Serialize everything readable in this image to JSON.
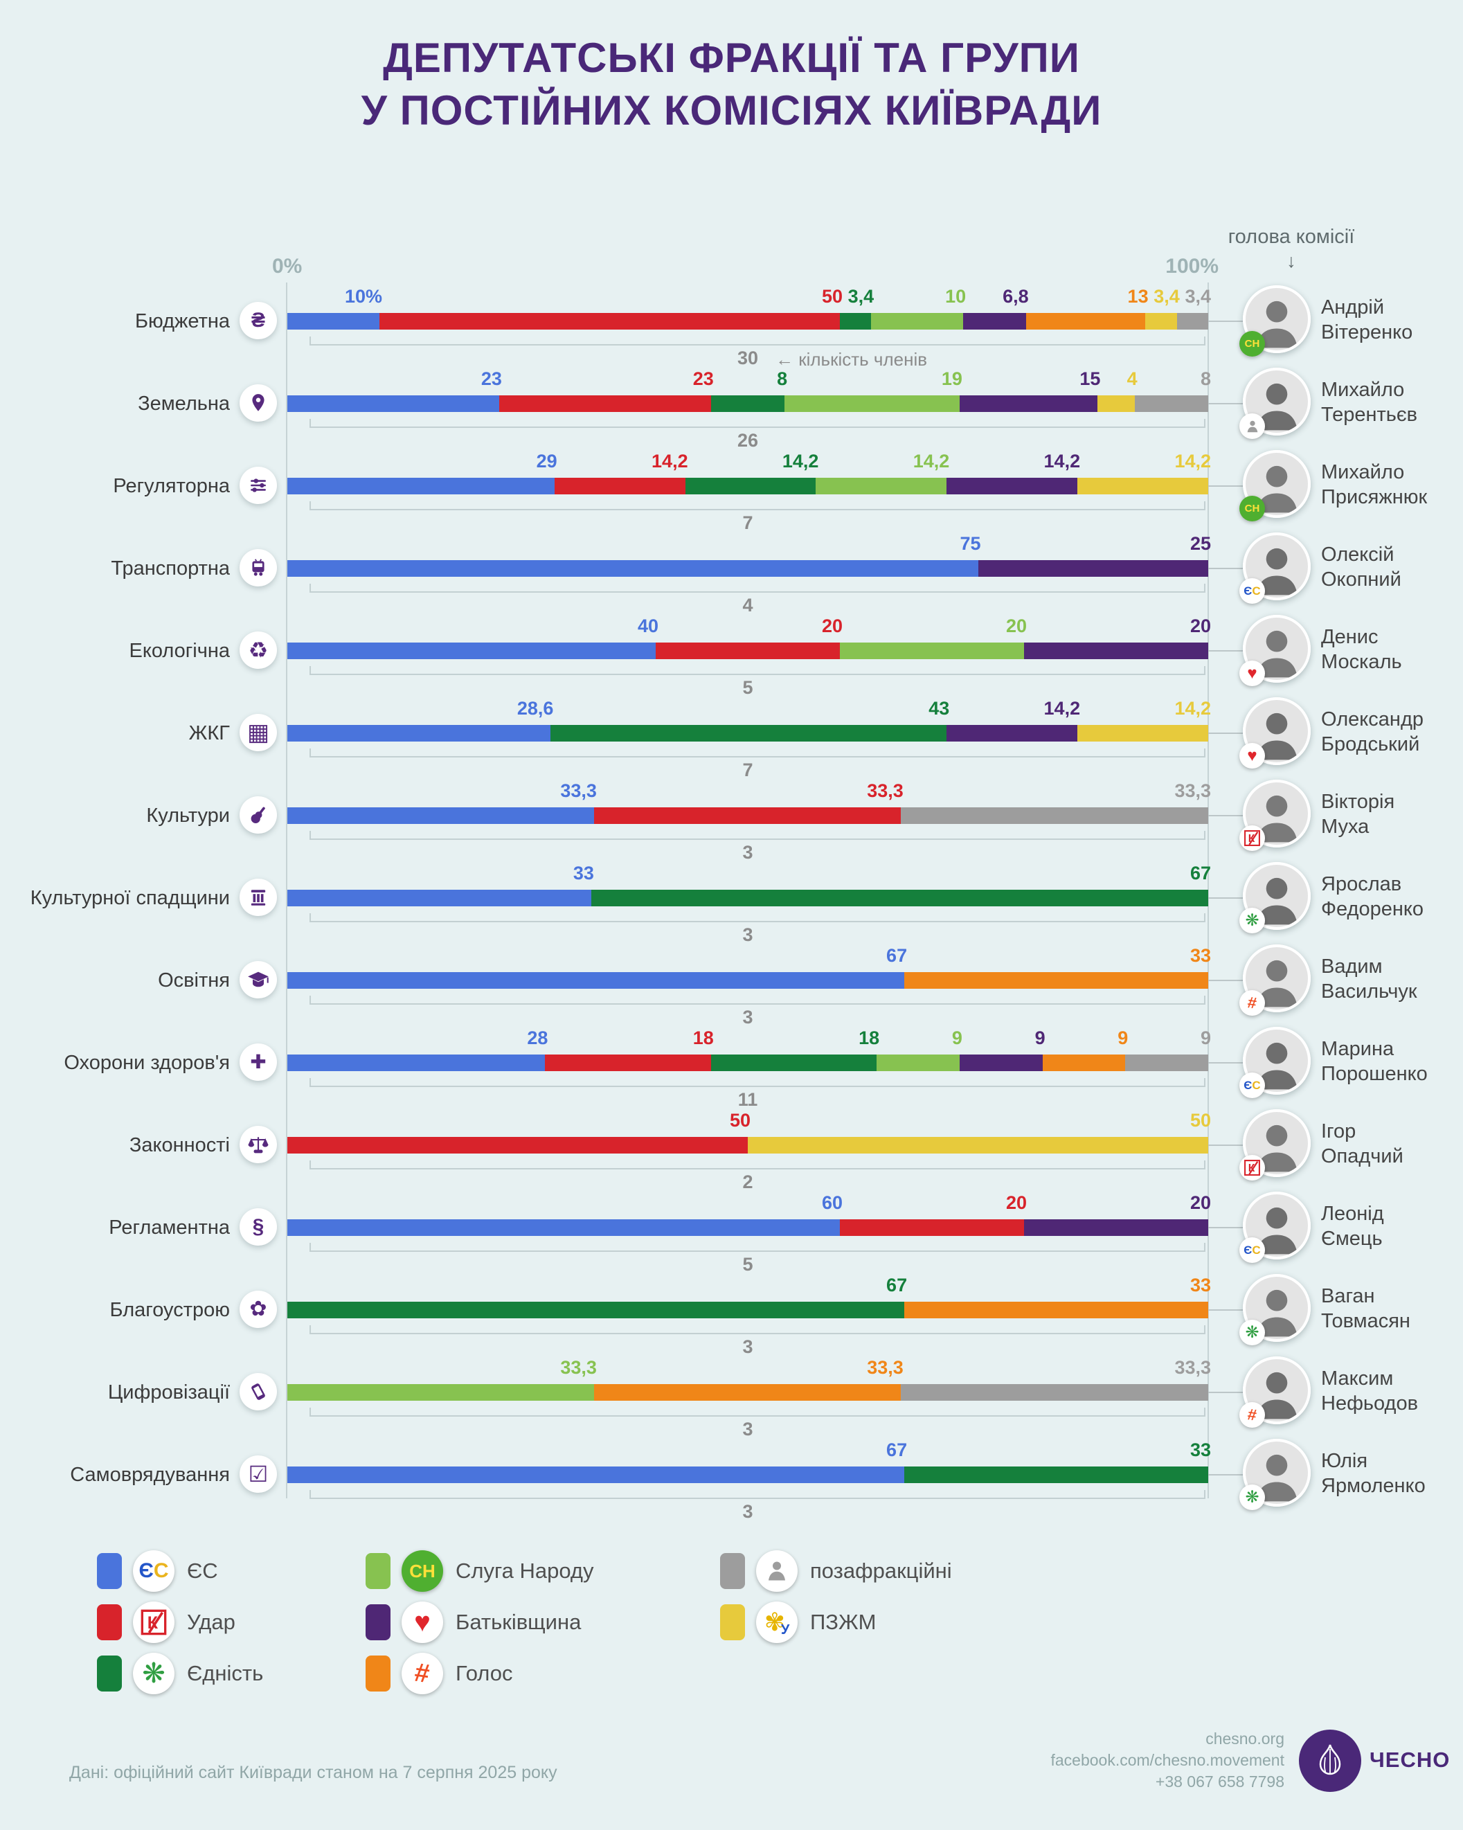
{
  "title": {
    "line1": "ДЕПУТАТСЬКІ ФРАКЦІЇ ТА ГРУПИ",
    "line2": "У ПОСТІЙНИХ КОМІСІЯХ КИЇВРАДИ"
  },
  "header": {
    "chair_label": "голова комісії",
    "arrow": "↓",
    "axis_min": "0%",
    "axis_max": "100%"
  },
  "annotation": {
    "members_note": "← кількість членів"
  },
  "parties": {
    "es": {
      "name": "ЄС",
      "color": "#4a74dc"
    },
    "udar": {
      "name": "Удар",
      "color": "#d8232b"
    },
    "yednist": {
      "name": "Єдність",
      "color": "#15803c"
    },
    "sn": {
      "name": "Слуга Народу",
      "color": "#87c250"
    },
    "batkivshchyna": {
      "name": "Батьківщина",
      "color": "#4f2775"
    },
    "holos": {
      "name": "Голос",
      "color": "#f08618"
    },
    "pzzhm": {
      "name": "ПЗЖМ",
      "color": "#e7ca3c"
    },
    "nonfaction": {
      "name": "позафракційні",
      "color": "#9d9d9d"
    }
  },
  "chart_data": {
    "type": "bar",
    "stacked": true,
    "orientation": "horizontal",
    "unit": "%",
    "x_range": [
      0,
      100
    ],
    "rows": [
      {
        "commission": "Бюджетна",
        "icon": "hryvnia-icon",
        "members": 30,
        "chair": {
          "first": "Андрій",
          "last": "Вітеренко",
          "party": "sn"
        },
        "segments": [
          {
            "party": "es",
            "value": 10,
            "label": "10%"
          },
          {
            "party": "udar",
            "value": 50,
            "label": "50"
          },
          {
            "party": "yednist",
            "value": 3.4,
            "label": "3,4"
          },
          {
            "party": "sn",
            "value": 10,
            "label": "10"
          },
          {
            "party": "batkivshchyna",
            "value": 6.8,
            "label": "6,8"
          },
          {
            "party": "holos",
            "value": 13,
            "label": "13"
          },
          {
            "party": "pzzhm",
            "value": 3.4,
            "label": "3,4"
          },
          {
            "party": "nonfaction",
            "value": 3.4,
            "label": "3,4"
          }
        ]
      },
      {
        "commission": "Земельна",
        "icon": "map-pin-icon",
        "members": 26,
        "chair": {
          "first": "Михайло",
          "last": "Терентьєв",
          "party": "nonfaction"
        },
        "segments": [
          {
            "party": "es",
            "value": 23,
            "label": "23"
          },
          {
            "party": "udar",
            "value": 23,
            "label": "23"
          },
          {
            "party": "yednist",
            "value": 8,
            "label": "8"
          },
          {
            "party": "sn",
            "value": 19,
            "label": "19"
          },
          {
            "party": "batkivshchyna",
            "value": 15,
            "label": "15"
          },
          {
            "party": "pzzhm",
            "value": 4,
            "label": "4"
          },
          {
            "party": "nonfaction",
            "value": 8,
            "label": "8"
          }
        ]
      },
      {
        "commission": "Регуляторна",
        "icon": "sliders-icon",
        "members": 7,
        "chair": {
          "first": "Михайло",
          "last": "Присяжнюк",
          "party": "sn"
        },
        "segments": [
          {
            "party": "es",
            "value": 29,
            "label": "29"
          },
          {
            "party": "udar",
            "value": 14.2,
            "label": "14,2"
          },
          {
            "party": "yednist",
            "value": 14.2,
            "label": "14,2"
          },
          {
            "party": "sn",
            "value": 14.2,
            "label": "14,2"
          },
          {
            "party": "batkivshchyna",
            "value": 14.2,
            "label": "14,2"
          },
          {
            "party": "pzzhm",
            "value": 14.2,
            "label": "14,2"
          }
        ]
      },
      {
        "commission": "Транспортна",
        "icon": "bus-icon",
        "members": 4,
        "chair": {
          "first": "Олексій",
          "last": "Окопний",
          "party": "es"
        },
        "segments": [
          {
            "party": "es",
            "value": 75,
            "label": "75"
          },
          {
            "party": "batkivshchyna",
            "value": 25,
            "label": "25"
          }
        ]
      },
      {
        "commission": "Екологічна",
        "icon": "recycle-icon",
        "members": 5,
        "chair": {
          "first": "Денис",
          "last": "Москаль",
          "party": "batkivshchyna"
        },
        "segments": [
          {
            "party": "es",
            "value": 40,
            "label": "40"
          },
          {
            "party": "udar",
            "value": 20,
            "label": "20"
          },
          {
            "party": "sn",
            "value": 20,
            "label": "20"
          },
          {
            "party": "batkivshchyna",
            "value": 20,
            "label": "20"
          }
        ]
      },
      {
        "commission": "ЖКГ",
        "icon": "building-icon",
        "members": 7,
        "chair": {
          "first": "Олександр",
          "last": "Бродський",
          "party": "batkivshchyna"
        },
        "segments": [
          {
            "party": "es",
            "value": 28.6,
            "label": "28,6"
          },
          {
            "party": "yednist",
            "value": 43,
            "label": "43"
          },
          {
            "party": "batkivshchyna",
            "value": 14.2,
            "label": "14,2"
          },
          {
            "party": "pzzhm",
            "value": 14.2,
            "label": "14,2"
          }
        ]
      },
      {
        "commission": "Культури",
        "icon": "guitar-icon",
        "members": 3,
        "chair": {
          "first": "Вікторія",
          "last": "Муха",
          "party": "udar"
        },
        "segments": [
          {
            "party": "es",
            "value": 33.3,
            "label": "33,3"
          },
          {
            "party": "udar",
            "value": 33.3,
            "label": "33,3"
          },
          {
            "party": "nonfaction",
            "value": 33.4,
            "label": "33,3"
          }
        ]
      },
      {
        "commission": "Культурної спадщини",
        "icon": "column-icon",
        "members": 3,
        "chair": {
          "first": "Ярослав",
          "last": "Федоренко",
          "party": "yednist"
        },
        "segments": [
          {
            "party": "es",
            "value": 33,
            "label": "33"
          },
          {
            "party": "yednist",
            "value": 67,
            "label": "67"
          }
        ]
      },
      {
        "commission": "Освітня",
        "icon": "graduation-cap-icon",
        "members": 3,
        "chair": {
          "first": "Вадим",
          "last": "Васильчук",
          "party": "holos"
        },
        "segments": [
          {
            "party": "es",
            "value": 67,
            "label": "67"
          },
          {
            "party": "holos",
            "value": 33,
            "label": "33"
          }
        ]
      },
      {
        "commission": "Охорони здоров'я",
        "icon": "medical-cross-icon",
        "members": 11,
        "chair": {
          "first": "Марина",
          "last": "Порошенко",
          "party": "es"
        },
        "segments": [
          {
            "party": "es",
            "value": 28,
            "label": "28"
          },
          {
            "party": "udar",
            "value": 18,
            "label": "18"
          },
          {
            "party": "yednist",
            "value": 18,
            "label": "18"
          },
          {
            "party": "sn",
            "value": 9,
            "label": "9"
          },
          {
            "party": "batkivshchyna",
            "value": 9,
            "label": "9"
          },
          {
            "party": "holos",
            "value": 9,
            "label": "9"
          },
          {
            "party": "nonfaction",
            "value": 9,
            "label": "9"
          }
        ]
      },
      {
        "commission": "Законності",
        "icon": "scales-icon",
        "members": 2,
        "chair": {
          "first": "Ігор",
          "last": "Опадчий",
          "party": "udar"
        },
        "segments": [
          {
            "party": "udar",
            "value": 50,
            "label": "50"
          },
          {
            "party": "pzzhm",
            "value": 50,
            "label": "50"
          }
        ]
      },
      {
        "commission": "Регламентна",
        "icon": "paragraph-icon",
        "members": 5,
        "chair": {
          "first": "Леонід",
          "last": "Ємець",
          "party": "es"
        },
        "segments": [
          {
            "party": "es",
            "value": 60,
            "label": "60"
          },
          {
            "party": "udar",
            "value": 20,
            "label": "20"
          },
          {
            "party": "batkivshchyna",
            "value": 20,
            "label": "20"
          }
        ]
      },
      {
        "commission": "Благоустрою",
        "icon": "plant-icon",
        "members": 3,
        "chair": {
          "first": "Ваган",
          "last": "Товмасян",
          "party": "yednist"
        },
        "segments": [
          {
            "party": "yednist",
            "value": 67,
            "label": "67"
          },
          {
            "party": "holos",
            "value": 33,
            "label": "33"
          }
        ]
      },
      {
        "commission": "Цифровізації",
        "icon": "smartphone-icon",
        "members": 3,
        "chair": {
          "first": "Максим",
          "last": "Нефьодов",
          "party": "holos"
        },
        "segments": [
          {
            "party": "sn",
            "value": 33.3,
            "label": "33,3"
          },
          {
            "party": "holos",
            "value": 33.3,
            "label": "33,3"
          },
          {
            "party": "nonfaction",
            "value": 33.4,
            "label": "33,3"
          }
        ]
      },
      {
        "commission": "Самоврядування",
        "icon": "ballot-check-icon",
        "members": 3,
        "chair": {
          "first": "Юлія",
          "last": "Ярмоленко",
          "party": "yednist"
        },
        "segments": [
          {
            "party": "es",
            "value": 67,
            "label": "67"
          },
          {
            "party": "yednist",
            "value": 33,
            "label": "33"
          }
        ]
      }
    ]
  },
  "legend": {
    "columns": [
      [
        "es",
        "udar",
        "yednist"
      ],
      [
        "sn",
        "batkivshchyna",
        "holos"
      ],
      [
        "nonfaction",
        "pzzhm"
      ]
    ]
  },
  "footer": {
    "source": "Дані: офіційний сайт Київради станом на 7 серпня 2025 року",
    "site": "chesno.org",
    "facebook": "facebook.com/chesno.movement",
    "phone": "+38 067 658 7798",
    "brand": "ЧЕСНО"
  }
}
